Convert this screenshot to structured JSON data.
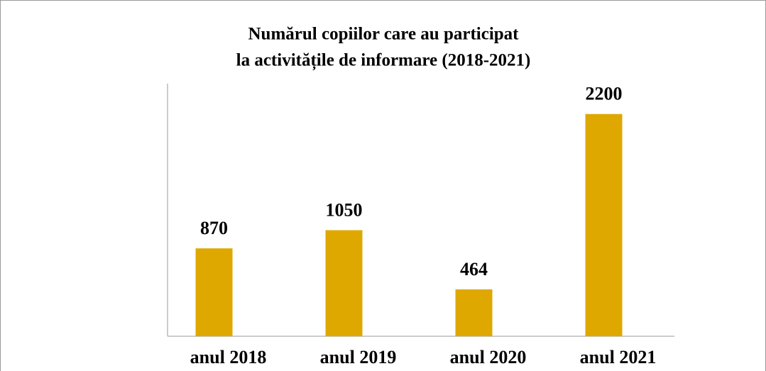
{
  "chart_data": {
    "type": "bar",
    "title": [
      "Numărul copiilor care au participat",
      "la activitățile de informare (2018-2021)"
    ],
    "categories": [
      "anul 2018",
      "anul 2019",
      "anul 2020",
      "anul 2021"
    ],
    "values": [
      870,
      1050,
      464,
      2200
    ],
    "color": "#dfa800",
    "ylim": [
      0,
      2500
    ]
  }
}
